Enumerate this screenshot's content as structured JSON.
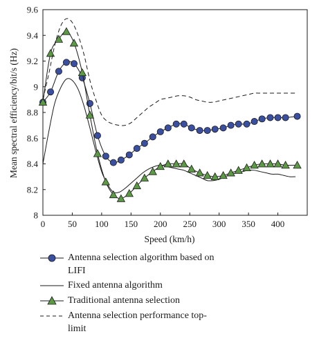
{
  "chart_data": {
    "type": "line",
    "xlabel": "Speed (km/h)",
    "ylabel": "Mean spectral efficiency/bit/s (Hz)",
    "xlim": [
      0,
      450
    ],
    "ylim": [
      8.0,
      9.6
    ],
    "xticks": [
      0,
      50,
      100,
      150,
      200,
      250,
      300,
      350,
      400
    ],
    "yticks": [
      8,
      8.2,
      8.4,
      8.6,
      8.8,
      9,
      9.2,
      9.4,
      9.6
    ],
    "ytick_labels": [
      "8",
      "8.2",
      "8.4",
      "8.6",
      "8.8",
      "9",
      "9.2",
      "9.4",
      "9.6"
    ],
    "grid": false,
    "legend_position": "bottom",
    "series": [
      {
        "name": "Antenna selection algorithm based on LIFI",
        "style": "line-circle",
        "color": "#3a4fa0",
        "x": [
          0,
          13,
          27,
          40,
          53,
          67,
          80,
          93,
          107,
          120,
          133,
          147,
          160,
          173,
          187,
          200,
          213,
          227,
          240,
          253,
          267,
          280,
          293,
          307,
          320,
          333,
          347,
          360,
          373,
          387,
          400,
          413,
          433
        ],
        "y": [
          8.88,
          8.96,
          9.12,
          9.19,
          9.18,
          9.07,
          8.87,
          8.62,
          8.46,
          8.41,
          8.43,
          8.47,
          8.52,
          8.56,
          8.61,
          8.65,
          8.68,
          8.71,
          8.71,
          8.68,
          8.66,
          8.66,
          8.67,
          8.68,
          8.7,
          8.71,
          8.71,
          8.73,
          8.75,
          8.76,
          8.76,
          8.76,
          8.77
        ]
      },
      {
        "name": "Fixed antenna algorithm",
        "style": "solid",
        "color": "#1a1a1a",
        "x": [
          0,
          10,
          20,
          30,
          40,
          50,
          60,
          70,
          80,
          90,
          100,
          110,
          120,
          130,
          140,
          150,
          160,
          170,
          180,
          190,
          200,
          210,
          220,
          230,
          240,
          250,
          260,
          270,
          280,
          290,
          300,
          310,
          320,
          330,
          340,
          350,
          360,
          370,
          380,
          390,
          400,
          410,
          420,
          430
        ],
        "y": [
          8.4,
          8.65,
          8.87,
          8.99,
          9.06,
          9.05,
          8.98,
          8.85,
          8.68,
          8.5,
          8.34,
          8.24,
          8.18,
          8.18,
          8.21,
          8.25,
          8.29,
          8.33,
          8.36,
          8.38,
          8.39,
          8.38,
          8.37,
          8.36,
          8.35,
          8.33,
          8.31,
          8.29,
          8.27,
          8.27,
          8.28,
          8.3,
          8.32,
          8.33,
          8.34,
          8.35,
          8.35,
          8.34,
          8.33,
          8.32,
          8.32,
          8.31,
          8.3,
          8.3
        ]
      },
      {
        "name": "Traditional antenna selection",
        "style": "line-triangle",
        "color": "#5d9a45",
        "x": [
          0,
          13,
          27,
          40,
          53,
          67,
          80,
          93,
          107,
          120,
          133,
          147,
          160,
          173,
          187,
          200,
          213,
          227,
          240,
          253,
          267,
          280,
          293,
          307,
          320,
          333,
          347,
          360,
          373,
          387,
          400,
          413,
          433
        ],
        "y": [
          8.88,
          9.26,
          9.37,
          9.43,
          9.34,
          9.11,
          8.78,
          8.48,
          8.26,
          8.16,
          8.13,
          8.17,
          8.23,
          8.29,
          8.34,
          8.38,
          8.4,
          8.4,
          8.4,
          8.36,
          8.33,
          8.31,
          8.3,
          8.31,
          8.33,
          8.35,
          8.37,
          8.39,
          8.4,
          8.4,
          8.4,
          8.39,
          8.39
        ]
      },
      {
        "name": "Antenna selection performance top-limit",
        "style": "dashed",
        "color": "#1a1a1a",
        "x": [
          0,
          10,
          20,
          30,
          40,
          50,
          60,
          70,
          80,
          90,
          100,
          110,
          120,
          130,
          140,
          150,
          160,
          170,
          180,
          190,
          200,
          210,
          220,
          230,
          240,
          250,
          260,
          270,
          280,
          290,
          300,
          310,
          320,
          330,
          340,
          350,
          360,
          370,
          380,
          390,
          400,
          410,
          420,
          430
        ],
        "y": [
          8.9,
          9.1,
          9.32,
          9.47,
          9.53,
          9.5,
          9.4,
          9.25,
          9.05,
          8.9,
          8.78,
          8.73,
          8.71,
          8.7,
          8.7,
          8.72,
          8.76,
          8.8,
          8.84,
          8.87,
          8.9,
          8.91,
          8.92,
          8.93,
          8.93,
          8.92,
          8.9,
          8.89,
          8.88,
          8.88,
          8.89,
          8.9,
          8.91,
          8.92,
          8.93,
          8.94,
          8.95,
          8.95,
          8.95,
          8.95,
          8.95,
          8.95,
          8.95,
          8.95
        ]
      }
    ]
  }
}
